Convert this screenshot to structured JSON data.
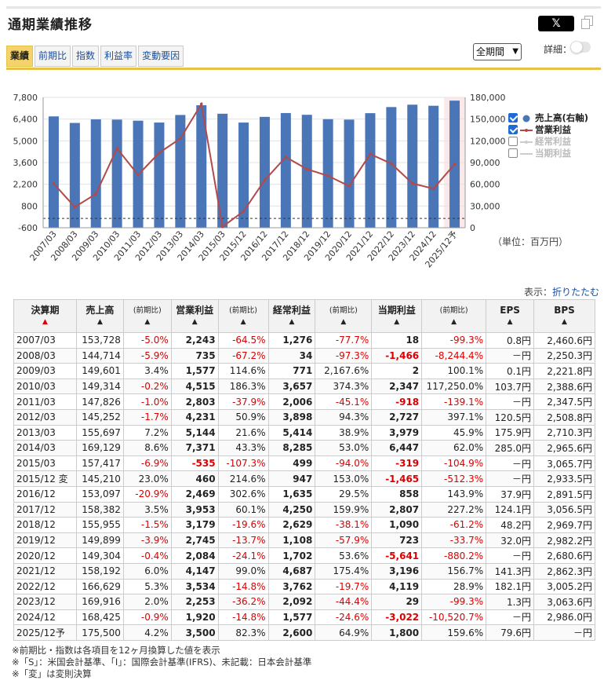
{
  "header": {
    "title": "通期業績推移",
    "x_label": "𝕏"
  },
  "tabs": [
    "業績",
    "前期比",
    "指数",
    "利益率",
    "変動要因"
  ],
  "period_select": "全期間",
  "detail_label": "詳細：",
  "unit_label": "（単位：百万円）",
  "collapse": {
    "prefix": "表示：",
    "link": "折りたたむ"
  },
  "legend": [
    {
      "label": "売上高(右軸)",
      "checked": true,
      "color": "#4a76b8"
    },
    {
      "label": "営業利益",
      "checked": true,
      "color": "#b24a4a"
    },
    {
      "label": "経常利益",
      "checked": false,
      "color": "#cccccc"
    },
    {
      "label": "当期利益",
      "checked": false,
      "color": "#cccccc"
    }
  ],
  "chart_data": {
    "type": "bar",
    "categories": [
      "2007/03",
      "2008/03",
      "2009/03",
      "2010/03",
      "2011/03",
      "2012/03",
      "2013/03",
      "2014/03",
      "2015/03",
      "2015/12",
      "2016/12",
      "2017/12",
      "2018/12",
      "2019/12",
      "2020/12",
      "2021/12",
      "2022/12",
      "2023/12",
      "2024/12",
      "2025/12予"
    ],
    "series": [
      {
        "name": "売上高(右軸)",
        "type": "bar",
        "axis": "right",
        "color": "#4a76b8",
        "values": [
          153728,
          144714,
          149601,
          149314,
          147826,
          145252,
          155697,
          169129,
          157417,
          145210,
          153097,
          158382,
          155955,
          149899,
          149304,
          158192,
          166629,
          169916,
          168425,
          175500
        ]
      },
      {
        "name": "営業利益",
        "type": "line",
        "axis": "left",
        "color": "#b24a4a",
        "values": [
          2243,
          735,
          1577,
          4515,
          2803,
          4231,
          5144,
          7371,
          -535,
          460,
          2469,
          3953,
          3179,
          2745,
          2084,
          4147,
          3534,
          2253,
          1920,
          3500
        ]
      }
    ],
    "left_ticks": [
      "7,800",
      "6,400",
      "5,000",
      "3,600",
      "2,200",
      "800",
      "-600"
    ],
    "right_ticks": [
      "180,000",
      "150,000",
      "120,000",
      "90,000",
      "60,000",
      "30,000",
      "0"
    ],
    "ylim_left": [
      -600,
      7800
    ],
    "ylim_right": [
      0,
      180000
    ]
  },
  "table": {
    "headers": [
      "決算期",
      "売上高",
      "(前期比)",
      "営業利益",
      "(前期比)",
      "経常利益",
      "(前期比)",
      "当期利益",
      "(前期比)",
      "EPS",
      "BPS"
    ],
    "rows": [
      [
        "2007/03",
        "153,728",
        "-5.0%",
        "2,243",
        "-64.5%",
        "1,276",
        "-77.7%",
        "18",
        "-99.3%",
        "0.8円",
        "2,460.6円"
      ],
      [
        "2008/03",
        "144,714",
        "-5.9%",
        "735",
        "-67.2%",
        "34",
        "-97.3%",
        "-1,466",
        "-8,244.4%",
        "－円",
        "2,250.3円"
      ],
      [
        "2009/03",
        "149,601",
        "3.4%",
        "1,577",
        "114.6%",
        "771",
        "2,167.6%",
        "2",
        "100.1%",
        "0.1円",
        "2,221.8円"
      ],
      [
        "2010/03",
        "149,314",
        "-0.2%",
        "4,515",
        "186.3%",
        "3,657",
        "374.3%",
        "2,347",
        "117,250.0%",
        "103.7円",
        "2,388.6円"
      ],
      [
        "2011/03",
        "147,826",
        "-1.0%",
        "2,803",
        "-37.9%",
        "2,006",
        "-45.1%",
        "-918",
        "-139.1%",
        "－円",
        "2,347.5円"
      ],
      [
        "2012/03",
        "145,252",
        "-1.7%",
        "4,231",
        "50.9%",
        "3,898",
        "94.3%",
        "2,727",
        "397.1%",
        "120.5円",
        "2,508.8円"
      ],
      [
        "2013/03",
        "155,697",
        "7.2%",
        "5,144",
        "21.6%",
        "5,414",
        "38.9%",
        "3,979",
        "45.9%",
        "175.9円",
        "2,710.3円"
      ],
      [
        "2014/03",
        "169,129",
        "8.6%",
        "7,371",
        "43.3%",
        "8,285",
        "53.0%",
        "6,447",
        "62.0%",
        "285.0円",
        "2,965.6円"
      ],
      [
        "2015/03",
        "157,417",
        "-6.9%",
        "-535",
        "-107.3%",
        "499",
        "-94.0%",
        "-319",
        "-104.9%",
        "－円",
        "3,065.7円"
      ],
      [
        "2015/12 変",
        "145,210",
        "23.0%",
        "460",
        "214.6%",
        "947",
        "153.0%",
        "-1,465",
        "-512.3%",
        "－円",
        "2,933.5円"
      ],
      [
        "2016/12",
        "153,097",
        "-20.9%",
        "2,469",
        "302.6%",
        "1,635",
        "29.5%",
        "858",
        "143.9%",
        "37.9円",
        "2,891.5円"
      ],
      [
        "2017/12",
        "158,382",
        "3.5%",
        "3,953",
        "60.1%",
        "4,250",
        "159.9%",
        "2,807",
        "227.2%",
        "124.1円",
        "3,056.5円"
      ],
      [
        "2018/12",
        "155,955",
        "-1.5%",
        "3,179",
        "-19.6%",
        "2,629",
        "-38.1%",
        "1,090",
        "-61.2%",
        "48.2円",
        "2,969.7円"
      ],
      [
        "2019/12",
        "149,899",
        "-3.9%",
        "2,745",
        "-13.7%",
        "1,108",
        "-57.9%",
        "723",
        "-33.7%",
        "32.0円",
        "2,982.2円"
      ],
      [
        "2020/12",
        "149,304",
        "-0.4%",
        "2,084",
        "-24.1%",
        "1,702",
        "53.6%",
        "-5,641",
        "-880.2%",
        "－円",
        "2,680.6円"
      ],
      [
        "2021/12",
        "158,192",
        "6.0%",
        "4,147",
        "99.0%",
        "4,687",
        "175.4%",
        "3,196",
        "156.7%",
        "141.3円",
        "2,862.3円"
      ],
      [
        "2022/12",
        "166,629",
        "5.3%",
        "3,534",
        "-14.8%",
        "3,762",
        "-19.7%",
        "4,119",
        "28.9%",
        "182.1円",
        "3,005.2円"
      ],
      [
        "2023/12",
        "169,916",
        "2.0%",
        "2,253",
        "-36.2%",
        "2,092",
        "-44.4%",
        "29",
        "-99.3%",
        "1.3円",
        "3,063.6円"
      ],
      [
        "2024/12",
        "168,425",
        "-0.9%",
        "1,920",
        "-14.8%",
        "1,577",
        "-24.6%",
        "-3,022",
        "-10,520.7%",
        "－円",
        "2,986.0円"
      ],
      [
        "2025/12予",
        "175,500",
        "4.2%",
        "3,500",
        "82.3%",
        "2,600",
        "64.9%",
        "1,800",
        "159.6%",
        "79.6円",
        "－円"
      ]
    ]
  },
  "notes": [
    "※前期比・指数は各項目を12ヶ月換算した値を表示",
    "※「S」：米国会計基準、「I」：国際会計基準(IFRS)、未記載：日本会計基準",
    "※「変」は変則決算"
  ],
  "colors": {
    "accent": "#e7c24a",
    "bar": "#4a76b8",
    "line": "#b24a4a",
    "negative": "#dd0000"
  }
}
